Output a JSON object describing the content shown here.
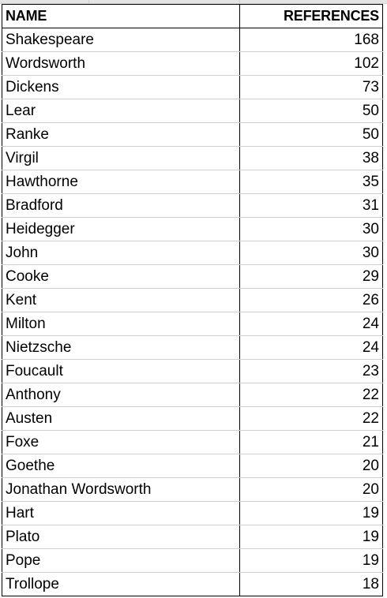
{
  "table": {
    "headers": {
      "name": "NAME",
      "references": "REFERENCES"
    },
    "rows": [
      {
        "name": "Shakespeare",
        "references": 168
      },
      {
        "name": "Wordsworth",
        "references": 102
      },
      {
        "name": "Dickens",
        "references": 73
      },
      {
        "name": "Lear",
        "references": 50
      },
      {
        "name": "Ranke",
        "references": 50
      },
      {
        "name": "Virgil",
        "references": 38
      },
      {
        "name": "Hawthorne",
        "references": 35
      },
      {
        "name": "Bradford",
        "references": 31
      },
      {
        "name": "Heidegger",
        "references": 30
      },
      {
        "name": "John",
        "references": 30
      },
      {
        "name": "Cooke",
        "references": 29
      },
      {
        "name": "Kent",
        "references": 26
      },
      {
        "name": "Milton",
        "references": 24
      },
      {
        "name": "Nietzsche",
        "references": 24
      },
      {
        "name": "Foucault",
        "references": 23
      },
      {
        "name": "Anthony",
        "references": 22
      },
      {
        "name": "Austen",
        "references": 22
      },
      {
        "name": "Foxe",
        "references": 21
      },
      {
        "name": "Goethe",
        "references": 20
      },
      {
        "name": "Jonathan Wordsworth",
        "references": 20
      },
      {
        "name": "Hart",
        "references": 19
      },
      {
        "name": "Plato",
        "references": 19
      },
      {
        "name": "Pope",
        "references": 19
      },
      {
        "name": "Trollope",
        "references": 18
      }
    ]
  },
  "colors": {
    "border": "#000000",
    "row_divider": "#cfcfcf",
    "background": "#ffffff"
  }
}
